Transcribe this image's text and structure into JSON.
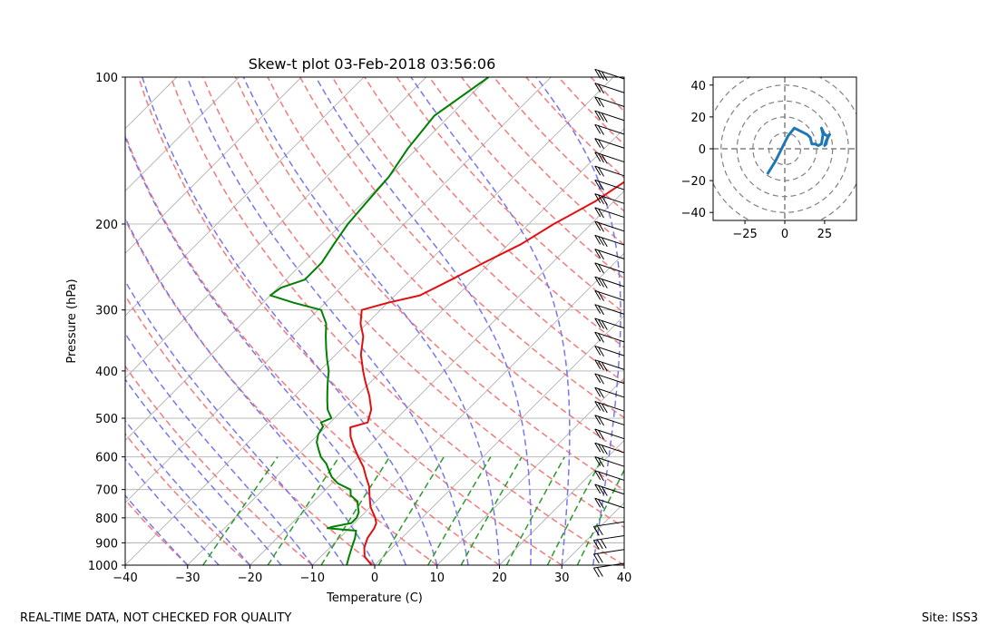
{
  "chart_data": [
    {
      "type": "skew-t",
      "title": "Skew-t plot 03-Feb-2018 03:56:06",
      "xlabel": "Temperature (C)",
      "ylabel": "Pressure (hPa)",
      "xlim": [
        -40,
        40
      ],
      "ylim": [
        1000,
        100
      ],
      "x_ticks": [
        "−40",
        "−30",
        "−20",
        "−10",
        "0",
        "10",
        "20",
        "30",
        "40"
      ],
      "y_ticks": [
        "100",
        "200",
        "300",
        "400",
        "500",
        "600",
        "700",
        "800",
        "900",
        "1000"
      ],
      "grid": true,
      "colors": {
        "temperature": "#e01010",
        "dewpoint": "#008000",
        "dry_adiabats": "#f47a7a",
        "moist_adiabats": "#7777ee",
        "mixing_ratio": "#2a9a2a",
        "isotherms": "#b0b0b0"
      },
      "series": [
        {
          "name": "",
          "kind": "temperature",
          "pressure": [
            1000,
            960,
            920,
            880,
            840,
            820,
            800,
            760,
            720,
            690,
            660,
            630,
            600,
            570,
            545,
            522,
            510,
            500,
            480,
            450,
            420,
            400,
            370,
            340,
            320,
            300,
            290,
            280,
            260,
            240,
            220,
            200,
            180,
            160,
            150,
            140,
            130,
            120,
            110,
            100
          ],
          "temperature": [
            -0.5,
            -3,
            -4.5,
            -5.5,
            -6,
            -6.5,
            -7.5,
            -10,
            -12,
            -13.5,
            -15.5,
            -17.5,
            -20,
            -22.5,
            -24.5,
            -26,
            -24,
            -24.5,
            -25.5,
            -28,
            -31,
            -33,
            -36,
            -38.5,
            -41,
            -43,
            -40,
            -36,
            -33.5,
            -31,
            -28,
            -26,
            -23,
            -21,
            -18.5,
            -16.5,
            -13.5,
            -10.5,
            -7.5,
            -3
          ]
        },
        {
          "name": "",
          "kind": "dewpoint",
          "pressure": [
            1000,
            960,
            920,
            880,
            850,
            840,
            835,
            820,
            800,
            780,
            760,
            740,
            720,
            700,
            680,
            660,
            640,
            620,
            600,
            580,
            560,
            540,
            520,
            510,
            500,
            480,
            460,
            440,
            420,
            400,
            380,
            360,
            340,
            320,
            300,
            290,
            280,
            270,
            260,
            240,
            220,
            200,
            180,
            160,
            140,
            120,
            100
          ],
          "temperature": [
            -4.5,
            -5.5,
            -6.5,
            -7.5,
            -8.5,
            -13.5,
            -13,
            -10.5,
            -10.5,
            -11,
            -12,
            -13,
            -15,
            -16,
            -19,
            -21,
            -22.5,
            -24,
            -26,
            -27.5,
            -29,
            -30,
            -30.5,
            -31.5,
            -30.5,
            -32.5,
            -34,
            -35.5,
            -37,
            -38.5,
            -40.5,
            -42.5,
            -44.5,
            -46.5,
            -49.5,
            -55,
            -60,
            -59.5,
            -57,
            -57,
            -58,
            -59,
            -59.5,
            -60,
            -61.5,
            -62.5,
            -60
          ]
        },
        {
          "name": "",
          "kind": "wind_barbs",
          "count": 36
        }
      ]
    },
    {
      "type": "hodograph",
      "xlim": [
        -45,
        45
      ],
      "ylim": [
        -45,
        45
      ],
      "x_ticks": [
        "−25",
        "0",
        "25"
      ],
      "y_ticks": [
        "40",
        "20",
        "0",
        "−20",
        "−40"
      ],
      "rings": [
        10,
        20,
        30,
        40,
        50
      ],
      "series": [
        {
          "name": "",
          "u": [
            -11,
            -6,
            -2,
            2,
            6,
            10,
            14,
            16,
            17,
            19,
            21,
            23,
            24,
            23,
            25,
            27,
            26,
            25,
            28,
            26,
            25
          ],
          "v": [
            -16,
            -8,
            0,
            8,
            13,
            11,
            9,
            7,
            3,
            3,
            2,
            3,
            9,
            13,
            9,
            8,
            3,
            2,
            9,
            5,
            2
          ]
        }
      ]
    }
  ],
  "footer": {
    "disclaimer": "REAL-TIME DATA, NOT CHECKED FOR QUALITY",
    "site": "Site: ISS3"
  }
}
